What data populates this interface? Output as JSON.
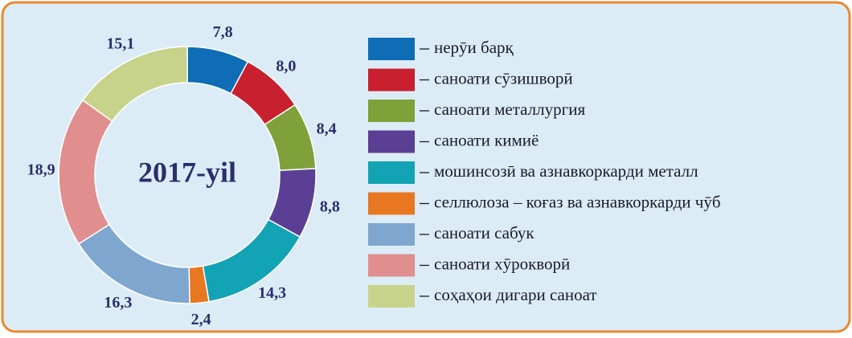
{
  "chart_data": {
    "type": "donut",
    "center_label": "2017-yil",
    "categories": [
      "нерӯи барқ",
      "саноати сӯзишворӣ",
      "саноати металлургия",
      "саноати кимиё",
      "мошинсозӣ ва азнавкоркарди металл",
      "селлюлоза – коғаз ва азнавкоркарди чӯб",
      "саноати сабук",
      "саноати хӯрокворӣ",
      "соҳаҳои дигари саноат"
    ],
    "values": [
      7.8,
      8.0,
      8.4,
      8.8,
      14.3,
      2.4,
      16.3,
      18.9,
      15.1
    ],
    "value_labels": [
      "7,8",
      "8,0",
      "8,4",
      "8,8",
      "14,3",
      "2,4",
      "16,3",
      "18,9",
      "15,1"
    ],
    "colors": [
      "#0e6db5",
      "#c8202e",
      "#7ea13a",
      "#5b3f94",
      "#12a3b5",
      "#e87722",
      "#7fa6cf",
      "#e08e8e",
      "#c7d38b"
    ]
  }
}
